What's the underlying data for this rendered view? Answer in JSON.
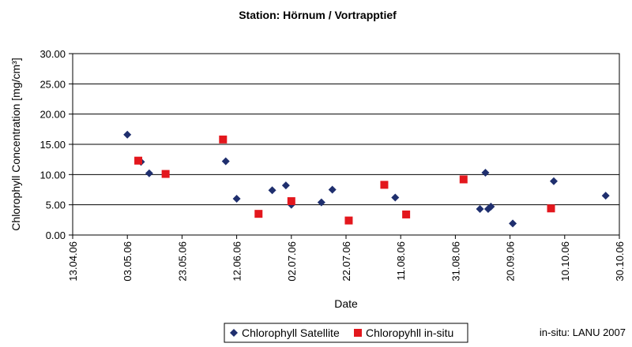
{
  "chart_data": {
    "type": "scatter",
    "title": "Station: Hörnum / Vortrapptief",
    "xlabel": "Date",
    "ylabel": "Chlorophyll Concentration [mg/cm³]",
    "ylim": [
      0,
      30
    ],
    "yticks": [
      "0.00",
      "5.00",
      "10.00",
      "15.00",
      "20.00",
      "25.00",
      "30.00"
    ],
    "xlim": [
      "2006-04-13",
      "2006-10-30"
    ],
    "xticks": [
      "13.04.06",
      "03.05.06",
      "23.05.06",
      "12.06.06",
      "02.07.06",
      "22.07.06",
      "11.08.06",
      "31.08.06",
      "20.09.06",
      "10.10.06",
      "30.10.06"
    ],
    "grid": "horizontal",
    "legend_position": "bottom",
    "series": [
      {
        "name": "Chlorophyll Satellite",
        "marker": "diamond",
        "color": "#1f2f6e",
        "points": [
          {
            "x": "2006-05-03",
            "y": 16.6
          },
          {
            "x": "2006-05-08",
            "y": 12.1
          },
          {
            "x": "2006-05-11",
            "y": 10.2
          },
          {
            "x": "2006-06-08",
            "y": 12.2
          },
          {
            "x": "2006-06-12",
            "y": 6.0
          },
          {
            "x": "2006-06-25",
            "y": 7.4
          },
          {
            "x": "2006-06-30",
            "y": 8.2
          },
          {
            "x": "2006-07-02",
            "y": 5.0
          },
          {
            "x": "2006-07-13",
            "y": 5.4
          },
          {
            "x": "2006-07-17",
            "y": 7.5
          },
          {
            "x": "2006-08-09",
            "y": 6.2
          },
          {
            "x": "2006-09-09",
            "y": 4.3
          },
          {
            "x": "2006-09-11",
            "y": 10.3
          },
          {
            "x": "2006-09-12",
            "y": 4.3
          },
          {
            "x": "2006-09-13",
            "y": 4.7
          },
          {
            "x": "2006-09-21",
            "y": 1.9
          },
          {
            "x": "2006-10-06",
            "y": 8.9
          },
          {
            "x": "2006-10-25",
            "y": 6.5
          }
        ]
      },
      {
        "name": "Chloropyhll in-situ",
        "marker": "square",
        "color": "#e3171d",
        "points": [
          {
            "x": "2006-05-07",
            "y": 12.3
          },
          {
            "x": "2006-05-17",
            "y": 10.1
          },
          {
            "x": "2006-06-07",
            "y": 15.8
          },
          {
            "x": "2006-06-20",
            "y": 3.5
          },
          {
            "x": "2006-07-02",
            "y": 5.6
          },
          {
            "x": "2006-07-23",
            "y": 2.4
          },
          {
            "x": "2006-08-05",
            "y": 8.3
          },
          {
            "x": "2006-08-13",
            "y": 3.4
          },
          {
            "x": "2006-09-03",
            "y": 9.2
          },
          {
            "x": "2006-10-05",
            "y": 4.4
          }
        ]
      }
    ]
  },
  "note": "in-situ: LANU 2007"
}
